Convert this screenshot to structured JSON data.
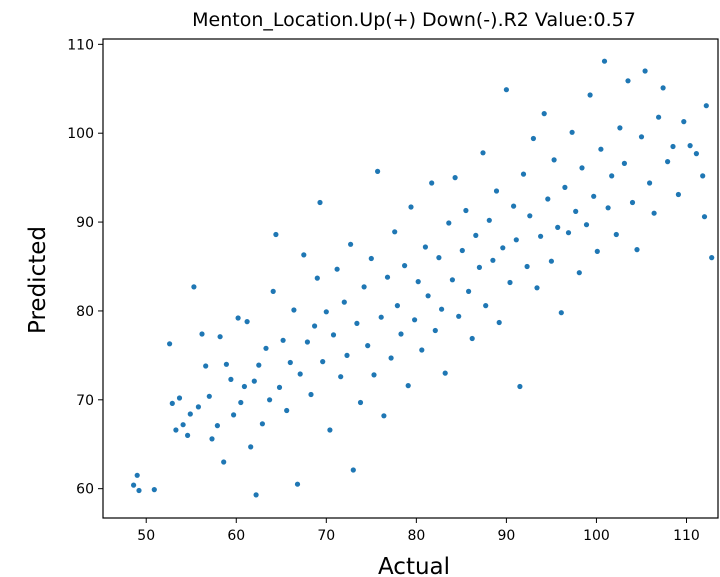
{
  "chart_data": {
    "type": "scatter",
    "title": "Menton_Location.Up(+) Down(-).R2 Value:0.57",
    "xlabel": "Actual",
    "ylabel": "Predicted",
    "xlim": [
      45.2,
      113.5
    ],
    "ylim": [
      56.7,
      110.6
    ],
    "xticks": [
      50,
      60,
      70,
      80,
      90,
      100,
      110
    ],
    "yticks": [
      60,
      70,
      80,
      90,
      100,
      110
    ],
    "grid": false,
    "marker_color": "#1f77b4",
    "series": [
      {
        "points": [
          [
            48.6,
            60.4
          ],
          [
            49.0,
            61.5
          ],
          [
            49.2,
            59.8
          ],
          [
            50.9,
            59.9
          ],
          [
            52.6,
            76.3
          ],
          [
            52.9,
            69.6
          ],
          [
            53.3,
            66.6
          ],
          [
            53.7,
            70.2
          ],
          [
            54.1,
            67.2
          ],
          [
            54.6,
            66.0
          ],
          [
            54.9,
            68.4
          ],
          [
            55.3,
            82.7
          ],
          [
            55.8,
            69.2
          ],
          [
            56.2,
            77.4
          ],
          [
            56.6,
            73.8
          ],
          [
            57.0,
            70.4
          ],
          [
            57.3,
            65.6
          ],
          [
            57.9,
            67.1
          ],
          [
            58.2,
            77.1
          ],
          [
            58.6,
            63.0
          ],
          [
            58.9,
            74.0
          ],
          [
            59.4,
            72.3
          ],
          [
            59.7,
            68.3
          ],
          [
            60.2,
            79.2
          ],
          [
            60.5,
            69.7
          ],
          [
            60.9,
            71.5
          ],
          [
            61.2,
            78.8
          ],
          [
            61.6,
            64.7
          ],
          [
            62.0,
            72.1
          ],
          [
            62.2,
            59.3
          ],
          [
            62.5,
            73.9
          ],
          [
            62.9,
            67.3
          ],
          [
            63.3,
            75.8
          ],
          [
            63.7,
            70.0
          ],
          [
            64.1,
            82.2
          ],
          [
            64.4,
            88.6
          ],
          [
            64.8,
            71.4
          ],
          [
            65.2,
            76.7
          ],
          [
            65.6,
            68.8
          ],
          [
            66.0,
            74.2
          ],
          [
            66.4,
            80.1
          ],
          [
            66.8,
            60.5
          ],
          [
            67.1,
            72.9
          ],
          [
            67.5,
            86.3
          ],
          [
            67.9,
            76.5
          ],
          [
            68.3,
            70.6
          ],
          [
            68.7,
            78.3
          ],
          [
            69.0,
            83.7
          ],
          [
            69.3,
            92.2
          ],
          [
            69.6,
            74.3
          ],
          [
            70.0,
            79.9
          ],
          [
            70.4,
            66.6
          ],
          [
            70.8,
            77.3
          ],
          [
            71.2,
            84.7
          ],
          [
            71.6,
            72.6
          ],
          [
            72.0,
            81.0
          ],
          [
            72.3,
            75.0
          ],
          [
            72.7,
            87.5
          ],
          [
            73.0,
            62.1
          ],
          [
            73.4,
            78.6
          ],
          [
            73.8,
            69.7
          ],
          [
            74.2,
            82.7
          ],
          [
            74.6,
            76.1
          ],
          [
            75.0,
            85.9
          ],
          [
            75.3,
            72.8
          ],
          [
            75.7,
            95.7
          ],
          [
            76.1,
            79.3
          ],
          [
            76.4,
            68.2
          ],
          [
            76.8,
            83.8
          ],
          [
            77.2,
            74.7
          ],
          [
            77.6,
            88.9
          ],
          [
            77.9,
            80.6
          ],
          [
            78.3,
            77.4
          ],
          [
            78.7,
            85.1
          ],
          [
            79.1,
            71.6
          ],
          [
            79.4,
            91.7
          ],
          [
            79.8,
            79.0
          ],
          [
            80.2,
            83.3
          ],
          [
            80.6,
            75.6
          ],
          [
            81.0,
            87.2
          ],
          [
            81.3,
            81.7
          ],
          [
            81.7,
            94.4
          ],
          [
            82.1,
            77.8
          ],
          [
            82.5,
            86.0
          ],
          [
            82.8,
            80.2
          ],
          [
            83.2,
            73.0
          ],
          [
            83.6,
            89.9
          ],
          [
            84.0,
            83.5
          ],
          [
            84.3,
            95.0
          ],
          [
            84.7,
            79.4
          ],
          [
            85.1,
            86.8
          ],
          [
            85.5,
            91.3
          ],
          [
            85.8,
            82.2
          ],
          [
            86.2,
            76.9
          ],
          [
            86.6,
            88.5
          ],
          [
            87.0,
            84.9
          ],
          [
            87.4,
            97.8
          ],
          [
            87.7,
            80.6
          ],
          [
            88.1,
            90.2
          ],
          [
            88.5,
            85.7
          ],
          [
            88.9,
            93.5
          ],
          [
            89.2,
            78.7
          ],
          [
            89.6,
            87.1
          ],
          [
            90.0,
            104.9
          ],
          [
            90.4,
            83.2
          ],
          [
            90.8,
            91.8
          ],
          [
            91.1,
            88.0
          ],
          [
            91.5,
            71.5
          ],
          [
            91.9,
            95.4
          ],
          [
            92.3,
            85.0
          ],
          [
            92.6,
            90.7
          ],
          [
            93.0,
            99.4
          ],
          [
            93.4,
            82.6
          ],
          [
            93.8,
            88.4
          ],
          [
            94.2,
            102.2
          ],
          [
            94.6,
            92.6
          ],
          [
            95.0,
            85.6
          ],
          [
            95.3,
            97.0
          ],
          [
            95.7,
            89.4
          ],
          [
            96.1,
            79.8
          ],
          [
            96.5,
            93.9
          ],
          [
            96.9,
            88.8
          ],
          [
            97.3,
            100.1
          ],
          [
            97.7,
            91.2
          ],
          [
            98.1,
            84.3
          ],
          [
            98.4,
            96.1
          ],
          [
            98.9,
            89.7
          ],
          [
            99.3,
            104.3
          ],
          [
            99.7,
            92.9
          ],
          [
            100.1,
            86.7
          ],
          [
            100.5,
            98.2
          ],
          [
            100.9,
            108.1
          ],
          [
            101.3,
            91.6
          ],
          [
            101.7,
            95.2
          ],
          [
            102.2,
            88.6
          ],
          [
            102.6,
            100.6
          ],
          [
            103.1,
            96.6
          ],
          [
            103.5,
            105.9
          ],
          [
            104.0,
            92.2
          ],
          [
            104.5,
            86.9
          ],
          [
            105.0,
            99.6
          ],
          [
            105.4,
            107.0
          ],
          [
            105.9,
            94.4
          ],
          [
            106.4,
            91.0
          ],
          [
            106.9,
            101.8
          ],
          [
            107.4,
            105.1
          ],
          [
            107.9,
            96.8
          ],
          [
            108.5,
            98.5
          ],
          [
            109.1,
            93.1
          ],
          [
            109.7,
            101.3
          ],
          [
            110.4,
            98.6
          ],
          [
            111.1,
            97.7
          ],
          [
            111.8,
            95.2
          ],
          [
            112.0,
            90.6
          ],
          [
            112.2,
            103.1
          ],
          [
            112.8,
            86.0
          ]
        ]
      }
    ]
  }
}
